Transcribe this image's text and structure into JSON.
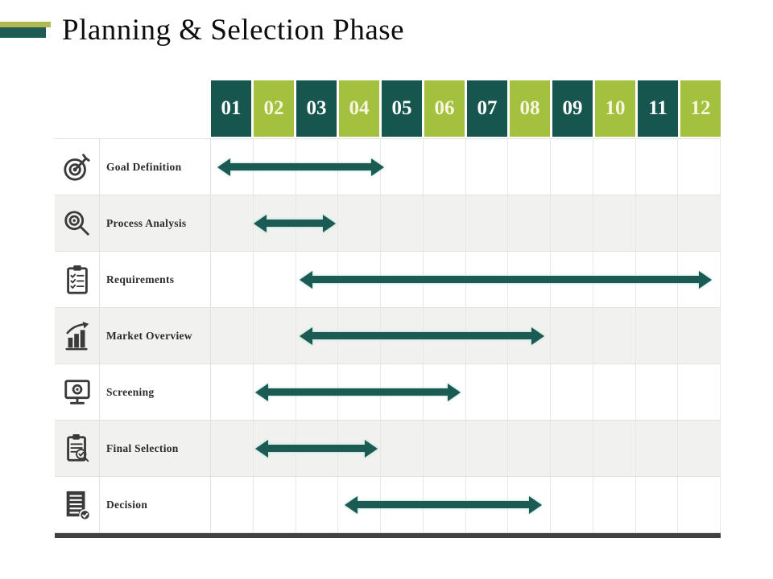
{
  "page": {
    "title": "Planning & Selection Phase"
  },
  "colors": {
    "teal": "#16564E",
    "green": "#A3C13E",
    "arrow-teal": "#1B5B54",
    "arrow-halo": "#BCE4DB",
    "title-bar-green": "#B2B852",
    "title-bar-teal": "#1D5B53",
    "icon": "#3A3A3A",
    "bottom-bar": "#414141",
    "alt-row": "#F1F1EF",
    "grid": "#E2E2E0",
    "grid-v": "#E8E8E6",
    "header-text-on-teal": "#FFFFFF",
    "header-text-on-green": "#F7F5DE"
  },
  "chart_data": {
    "type": "gantt",
    "title": "Planning & Selection Phase",
    "columns": [
      "01",
      "02",
      "03",
      "04",
      "05",
      "06",
      "07",
      "08",
      "09",
      "10",
      "11",
      "12"
    ],
    "column_style_pattern": [
      "teal",
      "green"
    ],
    "tasks": [
      {
        "label": "Goal Definition",
        "icon": "target-icon",
        "start": 1.15,
        "end": 5.08
      },
      {
        "label": "Process Analysis",
        "icon": "magnifier-gear-icon",
        "start": 2.0,
        "end": 3.93
      },
      {
        "label": "Requirements",
        "icon": "clipboard-checklist-icon",
        "start": 3.08,
        "end": 12.8
      },
      {
        "label": "Market Overview",
        "icon": "bar-chart-arrow-icon",
        "start": 3.08,
        "end": 8.85
      },
      {
        "label": "Screening",
        "icon": "monitor-gear-icon",
        "start": 2.05,
        "end": 6.88
      },
      {
        "label": "Final Selection",
        "icon": "clipboard-search-icon",
        "start": 2.05,
        "end": 4.93
      },
      {
        "label": "Decision",
        "icon": "document-check-icon",
        "start": 4.15,
        "end": 8.8
      }
    ]
  }
}
